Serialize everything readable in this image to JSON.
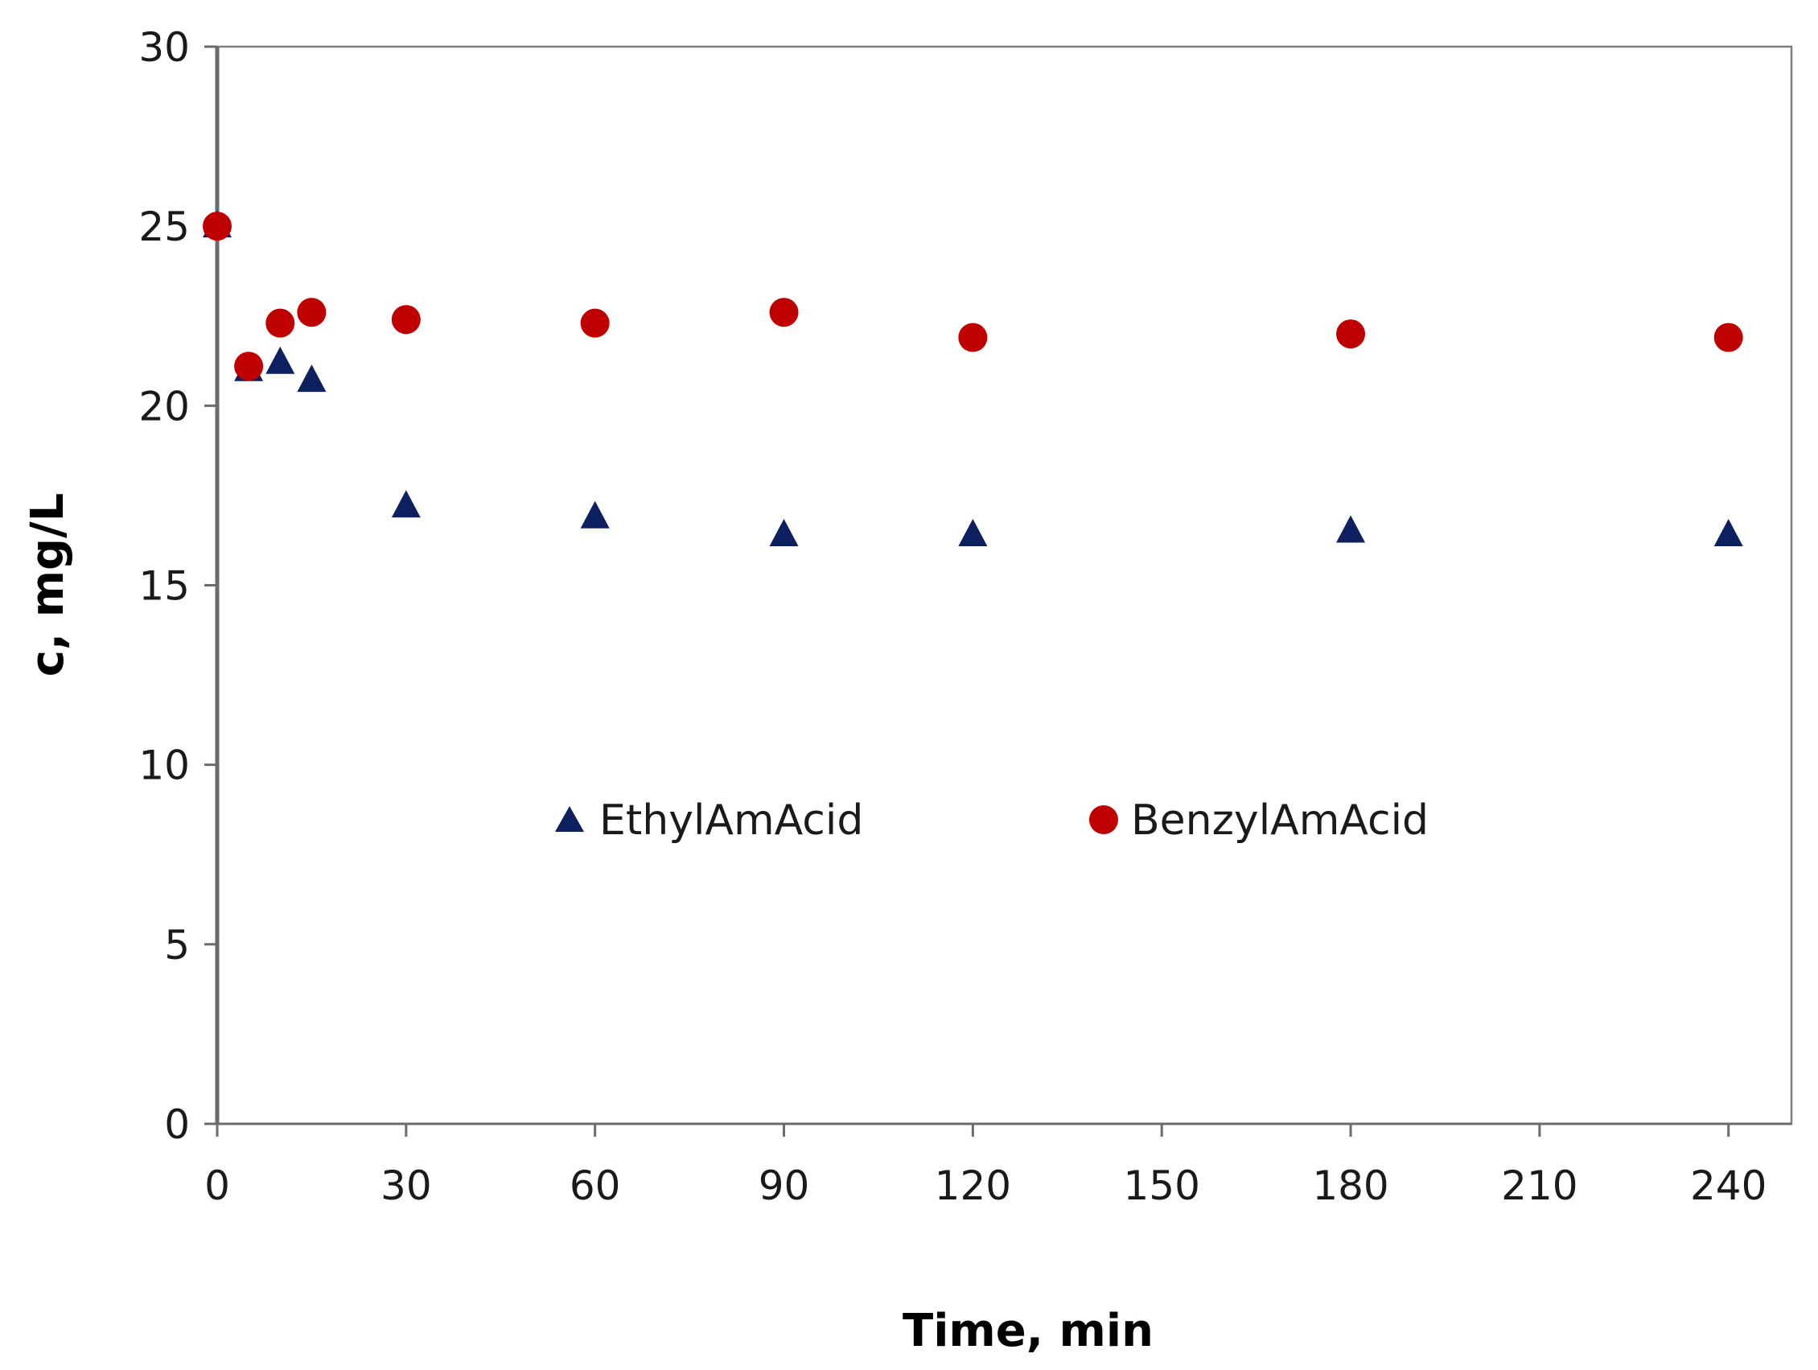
{
  "chart_data": {
    "type": "scatter",
    "title": "",
    "xlabel": "Time, min",
    "ylabel": "c, mg/L",
    "xlim": [
      0,
      250
    ],
    "ylim": [
      0,
      30
    ],
    "xticks": [
      0,
      30,
      60,
      90,
      120,
      150,
      180,
      210,
      240
    ],
    "yticks": [
      0,
      5,
      10,
      15,
      20,
      25,
      30
    ],
    "grid": false,
    "legend_position": "center",
    "series": [
      {
        "name": "EthylAmAcid",
        "marker": "triangle",
        "color": "#0d2060",
        "x": [
          0,
          5,
          10,
          15,
          30,
          60,
          90,
          120,
          180,
          240
        ],
        "y": [
          25.0,
          21.0,
          21.2,
          20.7,
          17.2,
          16.9,
          16.4,
          16.4,
          16.5,
          16.4
        ]
      },
      {
        "name": "BenzylAmAcid",
        "marker": "circle",
        "color": "#c00000",
        "x": [
          0,
          5,
          10,
          15,
          30,
          60,
          90,
          120,
          180,
          240
        ],
        "y": [
          25.0,
          21.1,
          22.3,
          22.6,
          22.4,
          22.3,
          22.6,
          21.9,
          22.0,
          21.9
        ]
      }
    ]
  }
}
